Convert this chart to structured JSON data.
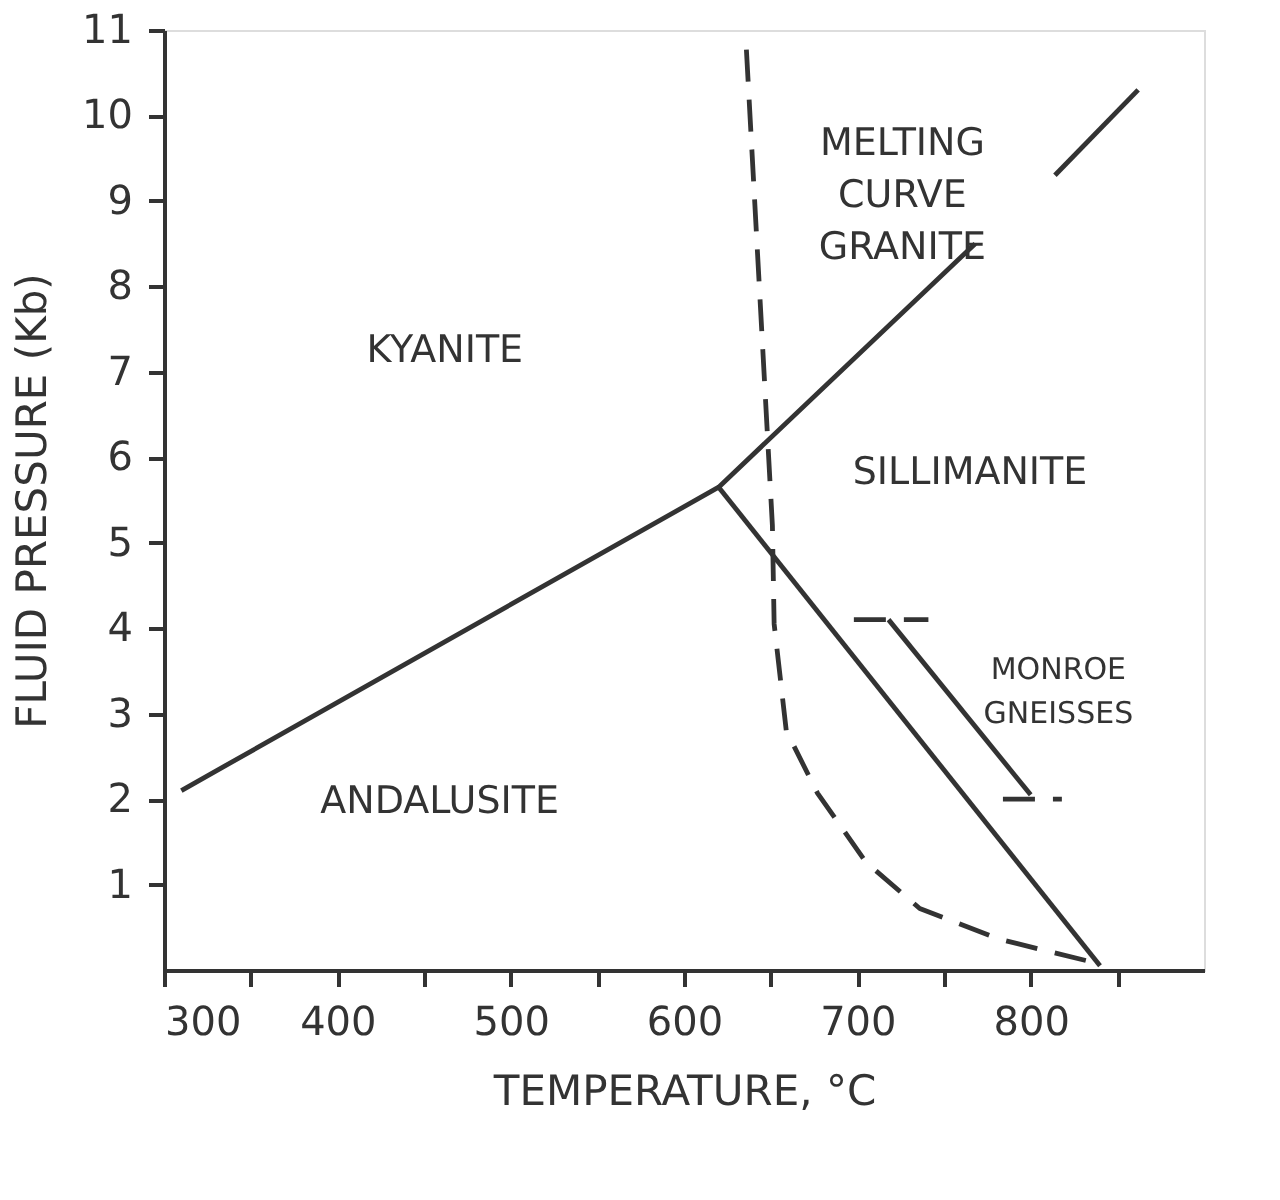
{
  "chart_data": {
    "type": "line",
    "xlabel": "TEMPERATURE, °C",
    "ylabel": "FLUID PRESSURE (Kb)",
    "xlim": [
      300,
      900
    ],
    "ylim": [
      0,
      11
    ],
    "xticks": [
      300,
      {
        "value": 350,
        "label": null
      },
      400,
      {
        "value": 450,
        "label": null
      },
      500,
      {
        "value": 550,
        "label": null
      },
      600,
      {
        "value": 650,
        "label": null
      },
      700,
      {
        "value": 750,
        "label": null
      },
      800,
      {
        "value": 850,
        "label": null
      }
    ],
    "yticks": [
      1,
      2,
      3,
      4,
      5,
      6,
      7,
      8,
      9,
      10,
      11
    ],
    "grid": false,
    "marker": "none",
    "series": [
      {
        "color": "#333333",
        "line_style": "solid",
        "x": [
          310,
          620,
          768,
          790,
          814,
          862
        ],
        "values": [
          2.1,
          5.65,
          8.5,
          null,
          9.3,
          10.3
        ]
      },
      {
        "color": "#333333",
        "line_style": "solid",
        "x": [
          620,
          840
        ],
        "values": [
          5.65,
          0.05
        ]
      },
      {
        "color": "#333333",
        "line_style": "dashed",
        "x": [
          636,
          651,
          652,
          659,
          677,
          705,
          736,
          782,
          836
        ],
        "values": [
          10.77,
          5.2,
          4.05,
          2.8,
          2.07,
          1.26,
          0.72,
          0.36,
          0.09
        ]
      },
      {
        "color": "#333333",
        "line_style": "dashed",
        "x": [
          698,
          741
        ],
        "values": [
          4.1,
          4.1
        ]
      },
      {
        "color": "#333333",
        "line_style": "solid",
        "x": [
          718,
          800
        ],
        "values": [
          4.1,
          2.05
        ]
      },
      {
        "color": "#333333",
        "line_style": "dashed",
        "x": [
          784,
          818
        ],
        "values": [
          2.0,
          2.0
        ]
      }
    ],
    "annotations": [
      "KYANITE",
      "ANDALUSITE",
      "SILLIMANITE",
      "MELTING\nCURVE\nGRANITE",
      "MONROE\nGNEISSES"
    ]
  }
}
